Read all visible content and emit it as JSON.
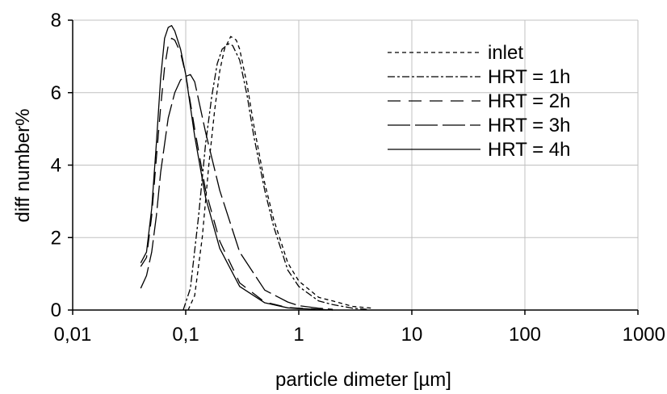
{
  "chart_data": {
    "type": "line",
    "title": "",
    "xlabel": "particle dimeter [µm]",
    "ylabel": "diff number%",
    "xscale": "log",
    "xlim": [
      0.01,
      1000
    ],
    "ylim": [
      0,
      8
    ],
    "x_ticks": [
      0.01,
      0.1,
      1,
      10,
      100,
      1000
    ],
    "x_tick_labels": [
      "0,01",
      "0,1",
      "1",
      "10",
      "100",
      "1000"
    ],
    "y_ticks": [
      0,
      2,
      4,
      6,
      8
    ],
    "y_tick_labels": [
      "0",
      "2",
      "4",
      "6",
      "8"
    ],
    "grid": true,
    "legend_position": "top-right",
    "series": [
      {
        "name": "inlet",
        "dash": "5,4",
        "x": [
          0.105,
          0.12,
          0.14,
          0.16,
          0.18,
          0.2,
          0.22,
          0.25,
          0.28,
          0.3,
          0.35,
          0.4,
          0.5,
          0.6,
          0.8,
          1.0,
          1.5,
          2.0,
          3.0,
          4.5
        ],
        "y": [
          0.0,
          0.4,
          2.0,
          4.0,
          5.5,
          6.6,
          7.2,
          7.55,
          7.45,
          7.2,
          6.2,
          5.1,
          3.5,
          2.5,
          1.3,
          0.8,
          0.35,
          0.25,
          0.1,
          0.05
        ]
      },
      {
        "name": "HRT = 1h",
        "dash": "9,3,3,3",
        "x": [
          0.095,
          0.11,
          0.13,
          0.15,
          0.17,
          0.19,
          0.21,
          0.24,
          0.26,
          0.3,
          0.35,
          0.4,
          0.5,
          0.6,
          0.8,
          1.0,
          1.5,
          2.0,
          3.0,
          4.0
        ],
        "y": [
          0.0,
          0.6,
          2.6,
          4.6,
          5.9,
          6.8,
          7.2,
          7.35,
          7.3,
          6.9,
          5.9,
          4.8,
          3.3,
          2.3,
          1.1,
          0.65,
          0.25,
          0.15,
          0.05,
          0.02
        ]
      },
      {
        "name": "HRT = 2h",
        "dash": "16,10",
        "x": [
          0.04,
          0.045,
          0.05,
          0.055,
          0.06,
          0.065,
          0.07,
          0.075,
          0.08,
          0.09,
          0.1,
          0.12,
          0.15,
          0.2,
          0.3,
          0.5,
          0.8,
          1.0,
          1.5,
          2.0
        ],
        "y": [
          1.2,
          1.45,
          2.6,
          4.2,
          5.6,
          6.7,
          7.3,
          7.5,
          7.45,
          7.1,
          6.5,
          5.0,
          3.3,
          1.9,
          0.75,
          0.22,
          0.07,
          0.05,
          0.02,
          0.0
        ]
      },
      {
        "name": "HRT = 3h",
        "dash": "28,6",
        "x": [
          0.04,
          0.045,
          0.05,
          0.055,
          0.06,
          0.07,
          0.08,
          0.09,
          0.1,
          0.11,
          0.12,
          0.13,
          0.15,
          0.2,
          0.3,
          0.5,
          0.8,
          1.0,
          1.5,
          2.0
        ],
        "y": [
          0.6,
          0.95,
          1.6,
          2.6,
          3.8,
          5.3,
          6.0,
          6.35,
          6.45,
          6.5,
          6.3,
          5.8,
          4.9,
          3.3,
          1.6,
          0.55,
          0.22,
          0.12,
          0.05,
          0.02
        ]
      },
      {
        "name": "HRT = 4h",
        "dash": "",
        "x": [
          0.04,
          0.045,
          0.05,
          0.055,
          0.06,
          0.065,
          0.07,
          0.075,
          0.08,
          0.09,
          0.1,
          0.12,
          0.15,
          0.2,
          0.3,
          0.5,
          0.8,
          1.0,
          1.5,
          2.0
        ],
        "y": [
          1.3,
          1.6,
          2.8,
          4.6,
          6.4,
          7.5,
          7.8,
          7.85,
          7.7,
          7.2,
          6.5,
          4.8,
          3.1,
          1.7,
          0.65,
          0.2,
          0.06,
          0.04,
          0.02,
          0.0
        ]
      }
    ]
  }
}
